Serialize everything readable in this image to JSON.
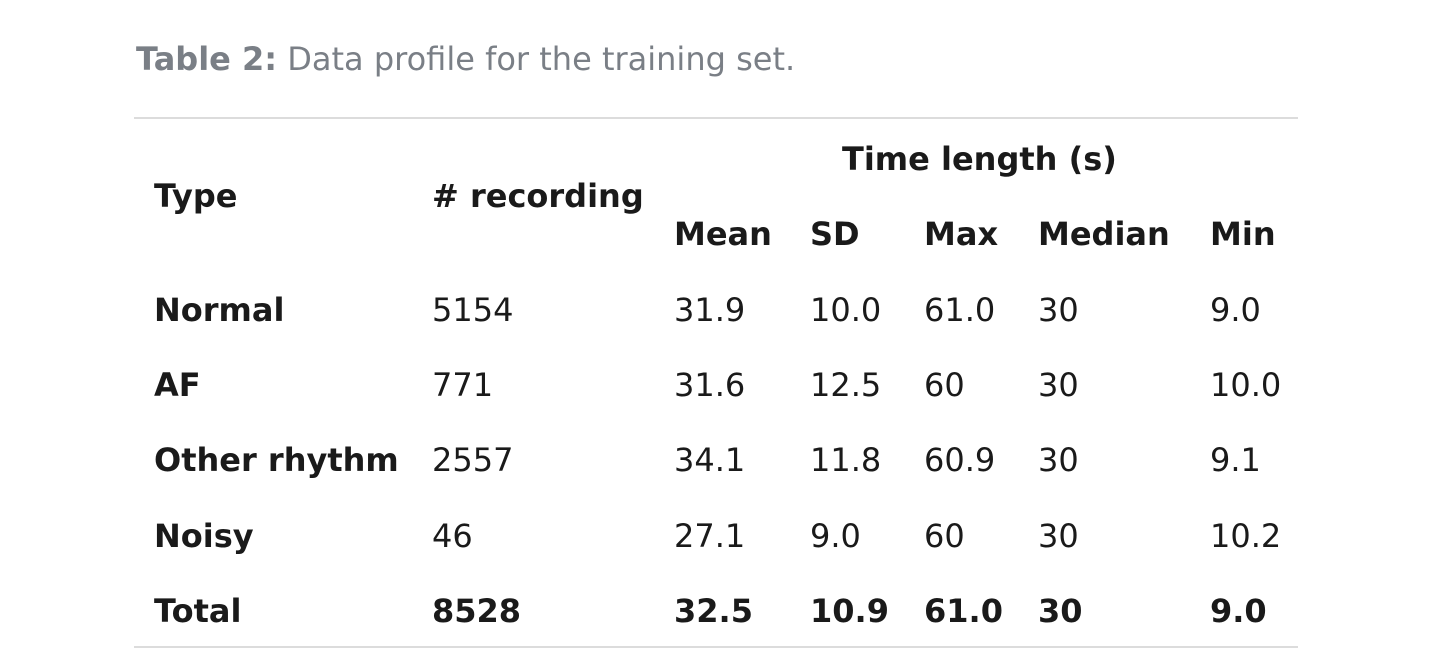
{
  "caption": {
    "label": "Table 2:",
    "text": " Data profile for the training set."
  },
  "table": {
    "headers": {
      "type": "Type",
      "recording": "# recording",
      "group": "Time length (s)",
      "mean": "Mean",
      "sd": "SD",
      "max": "Max",
      "median": "Median",
      "min": "Min"
    },
    "rows": [
      {
        "type": "Normal",
        "recording": "5154",
        "mean": "31.9",
        "sd": "10.0",
        "max": "61.0",
        "median": "30",
        "min": "9.0"
      },
      {
        "type": "AF",
        "recording": "771",
        "mean": "31.6",
        "sd": "12.5",
        "max": "60",
        "median": "30",
        "min": "10.0"
      },
      {
        "type": "Other rhythm",
        "recording": "2557",
        "mean": "34.1",
        "sd": "11.8",
        "max": "60.9",
        "median": "30",
        "min": "9.1"
      },
      {
        "type": "Noisy",
        "recording": "46",
        "mean": "27.1",
        "sd": "9.0",
        "max": "60",
        "median": "30",
        "min": "10.2"
      }
    ],
    "total": {
      "type": "Total",
      "recording": "8528",
      "mean": "32.5",
      "sd": "10.9",
      "max": "61.0",
      "median": "30",
      "min": "9.0"
    }
  }
}
